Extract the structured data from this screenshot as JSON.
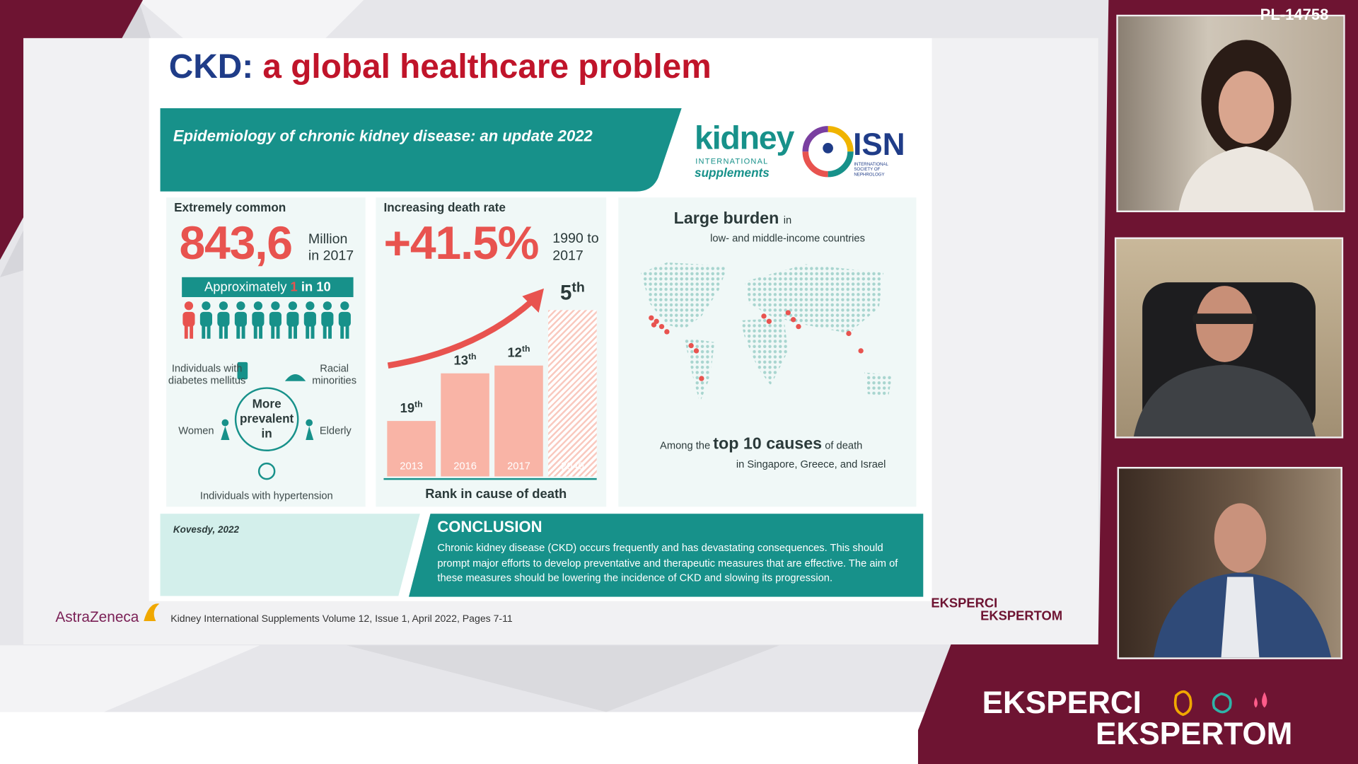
{
  "overlay_id": "PL-14758",
  "slide": {
    "title_part1": "CKD:",
    "title_part2": "a global healthcare problem",
    "banner": "Epidemiology of chronic kidney disease: an update 2022",
    "logos": {
      "kidney": "kidney",
      "international": "INTERNATIONAL",
      "supplements": "supplements",
      "isn": "ISN",
      "isn_sub": "INTERNATIONAL SOCIETY OF NEPHROLOGY"
    },
    "common": {
      "heading": "Extremely common",
      "number": "843,6",
      "unit": "Million",
      "year": "in 2017",
      "ratio_pre": "Approximately",
      "ratio_num": "1",
      "ratio_post": "in 10",
      "center": "More prevalent in",
      "groups": {
        "diabetes": "Individuals with diabetes mellitus",
        "minorities": "Racial minorities",
        "women": "Women",
        "elderly": "Elderly",
        "hypertension": "Individuals with hypertension"
      }
    },
    "death": {
      "heading": "Increasing death rate",
      "number": "+41.5%",
      "period": "1990 to 2017",
      "bars": [
        {
          "rank": "19",
          "suffix": "th",
          "year": "2013"
        },
        {
          "rank": "13",
          "suffix": "th",
          "year": "2016"
        },
        {
          "rank": "12",
          "suffix": "th",
          "year": "2017"
        },
        {
          "rank": "5",
          "suffix": "th",
          "year": "2040"
        }
      ],
      "caption": "Rank in cause of death"
    },
    "burden": {
      "heading": "Large burden",
      "heading_suffix": "in",
      "subheading": "low- and middle-income countries",
      "note_pre": "Among the",
      "note_em": "top 10 causes",
      "note_post": "of death",
      "note_line2": "in Singapore, Greece, and Israel"
    },
    "source": "Kovesdy, 2022",
    "conclusion": {
      "heading": "CONCLUSION",
      "text": "Chronic kidney disease (CKD) occurs frequently and has devastating consequences. This should prompt major efforts to develop preventative and therapeutic measures that are effective. The aim of these measures should be lowering the incidence of CKD and slowing its progression."
    },
    "footer": {
      "sponsor": "AstraZeneca",
      "citation": "Kidney International Supplements Volume 12, Issue 1, April 2022, Pages 7-11"
    }
  },
  "brand": {
    "line1": "EKSPERCI",
    "line2": "EKSPERTOM"
  }
}
